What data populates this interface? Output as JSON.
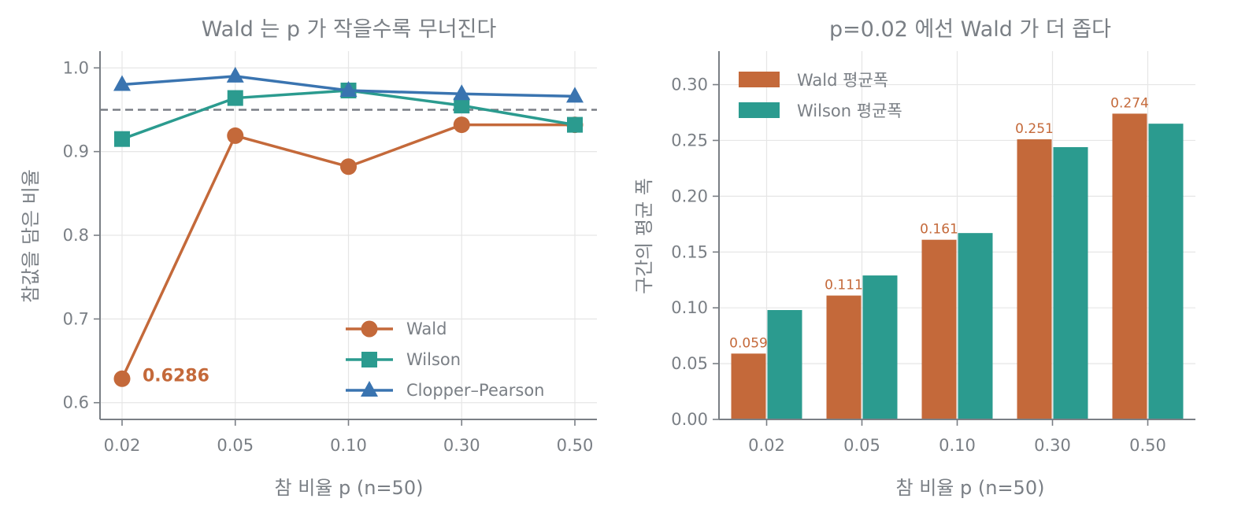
{
  "colors": {
    "wald": "#c4693a",
    "wilson": "#2b9b8f",
    "clopper": "#3a74b0",
    "reference": "#7a7f85",
    "text": "#7a7f85"
  },
  "chart_data": [
    {
      "type": "line",
      "title": "Wald 는 p 가 작을수록 무너진다",
      "xlabel": "참 비율 p (n=50)",
      "ylabel": "참값을 담은 비율",
      "categories": [
        "0.02",
        "0.05",
        "0.10",
        "0.30",
        "0.50"
      ],
      "ylim": [
        0.58,
        1.02
      ],
      "yticks": [
        0.6,
        0.7,
        0.8,
        0.9,
        1.0
      ],
      "ytick_labels": [
        "0.6",
        "0.7",
        "0.8",
        "0.9",
        "1.0"
      ],
      "grid": true,
      "reference_line": 0.95,
      "legend_position": "lower-right",
      "series": [
        {
          "name": "Wald",
          "marker": "circle",
          "values": [
            0.6286,
            0.919,
            0.882,
            0.932,
            0.932
          ]
        },
        {
          "name": "Wilson",
          "marker": "square",
          "values": [
            0.915,
            0.964,
            0.973,
            0.955,
            0.932
          ]
        },
        {
          "name": "Clopper–Pearson",
          "marker": "triangle",
          "values": [
            0.98,
            0.99,
            0.973,
            0.969,
            0.966
          ]
        }
      ],
      "annotation": {
        "text": "0.6286",
        "category_index": 0,
        "value": 0.6286
      }
    },
    {
      "type": "bar",
      "title": "p=0.02 에선 Wald 가 더 좁다",
      "xlabel": "참 비율 p (n=50)",
      "ylabel": "구간의 평균 폭",
      "categories": [
        "0.02",
        "0.05",
        "0.10",
        "0.30",
        "0.50"
      ],
      "ylim": [
        0,
        0.33
      ],
      "yticks": [
        0,
        0.05,
        0.1,
        0.15,
        0.2,
        0.25,
        0.3
      ],
      "ytick_labels": [
        "0.00",
        "0.05",
        "0.10",
        "0.15",
        "0.20",
        "0.25",
        "0.30"
      ],
      "grid": true,
      "legend_position": "top-left",
      "series": [
        {
          "name": "Wald 평균폭",
          "values": [
            0.059,
            0.111,
            0.161,
            0.251,
            0.274
          ],
          "labels": [
            "0.059",
            "0.111",
            "0.161",
            "0.251",
            "0.274"
          ]
        },
        {
          "name": "Wilson 평균폭",
          "values": [
            0.098,
            0.129,
            0.167,
            0.244,
            0.265
          ]
        }
      ]
    }
  ]
}
